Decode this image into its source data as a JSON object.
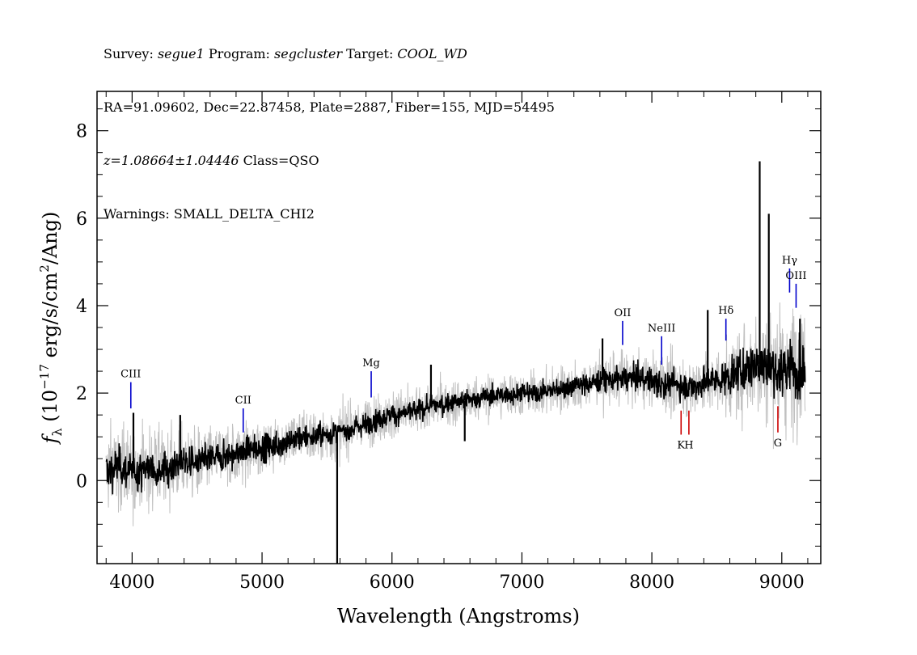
{
  "header": {
    "line1": {
      "k1": "Survey: ",
      "v1": "segue1",
      "k2": " Program: ",
      "v2": "segcluster",
      "k3": " Target: ",
      "v3": "COOL_WD"
    },
    "line2": "RA=91.09602, Dec=22.87458, Plate=2887, Fiber=155, MJD=54495",
    "line3": {
      "z": "z=1.08664±1.04446",
      "cls": " Class=QSO"
    },
    "line4": "Warnings: SMALL_DELTA_CHI2"
  },
  "chart_data": {
    "type": "line",
    "title": "",
    "xlabel": "Wavelength (Angstroms)",
    "ylabel_parts": {
      "f": "f",
      "sub": "λ",
      "pre": " (10",
      "exp1": "−17",
      "mid": " erg/s/cm",
      "exp2": "2",
      "post": "/Ang)"
    },
    "xlim": [
      3730,
      9300
    ],
    "ylim": [
      -1.9,
      8.9
    ],
    "xticks": [
      4000,
      5000,
      6000,
      7000,
      8000,
      9000
    ],
    "yticks": [
      0,
      2,
      4,
      6,
      8
    ],
    "xtick_labels": [
      "4000",
      "5000",
      "6000",
      "7000",
      "8000",
      "9000"
    ],
    "ytick_labels": [
      "0",
      "2",
      "4",
      "6",
      "8"
    ],
    "grid": false,
    "colors": {
      "flux": "#000000",
      "error": "#c0c0c0",
      "emission": "#0000cc",
      "absorption": "#cc0000"
    },
    "series": [
      {
        "role": "flux",
        "x": [
          3800,
          3900,
          4000,
          4100,
          4200,
          4300,
          4400,
          4500,
          4600,
          4700,
          4800,
          4900,
          5000,
          5100,
          5200,
          5300,
          5400,
          5500,
          5600,
          5700,
          5800,
          5900,
          6000,
          6100,
          6200,
          6300,
          6400,
          6500,
          6600,
          6700,
          6800,
          6900,
          7000,
          7100,
          7200,
          7300,
          7400,
          7500,
          7600,
          7700,
          7800,
          7900,
          8000,
          8100,
          8200,
          8300,
          8400,
          8500,
          8600,
          8700,
          8800,
          8900,
          9000,
          9100,
          9180
        ],
        "y": [
          0.2,
          0.35,
          0.15,
          0.3,
          0.25,
          0.3,
          0.45,
          0.4,
          0.5,
          0.55,
          0.6,
          0.7,
          0.75,
          0.8,
          0.9,
          1.0,
          1.0,
          1.05,
          1.1,
          1.2,
          1.3,
          1.4,
          1.5,
          1.55,
          1.6,
          1.7,
          1.75,
          1.8,
          1.85,
          1.9,
          1.95,
          1.95,
          2.0,
          2.0,
          2.05,
          2.1,
          2.15,
          2.2,
          2.3,
          2.3,
          2.35,
          2.35,
          2.3,
          2.2,
          2.2,
          2.1,
          2.25,
          2.3,
          2.35,
          2.5,
          2.7,
          2.6,
          2.5,
          2.6,
          2.55
        ]
      },
      {
        "role": "error",
        "x": [
          3800,
          4000,
          4500,
          5000,
          5500,
          6000,
          6500,
          7000,
          7500,
          8000,
          8500,
          8800,
          9000,
          9180
        ],
        "y": [
          0.6,
          0.55,
          0.45,
          0.4,
          0.35,
          0.32,
          0.3,
          0.3,
          0.32,
          0.38,
          0.45,
          0.7,
          0.8,
          0.9
        ]
      }
    ],
    "spikes": [
      {
        "x": 4010,
        "y": 1.55
      },
      {
        "x": 4370,
        "y": 1.5
      },
      {
        "x": 5578,
        "y": -1.9
      },
      {
        "x": 6300,
        "y": 2.65
      },
      {
        "x": 6560,
        "y": 0.9
      },
      {
        "x": 7620,
        "y": 3.25
      },
      {
        "x": 8040,
        "y": 1.9
      },
      {
        "x": 8430,
        "y": 3.9
      },
      {
        "x": 8830,
        "y": 7.3
      },
      {
        "x": 8900,
        "y": 6.1
      },
      {
        "x": 9140,
        "y": 3.7
      }
    ],
    "lines": [
      {
        "label": "CIII",
        "x": 3990,
        "y1": 1.65,
        "y2": 2.25,
        "kind": "emission",
        "label_pos": "above"
      },
      {
        "label": "CII",
        "x": 4855,
        "y1": 1.1,
        "y2": 1.65,
        "kind": "emission",
        "label_pos": "above"
      },
      {
        "label": "Mg",
        "x": 5840,
        "y1": 1.9,
        "y2": 2.5,
        "kind": "emission",
        "label_pos": "above"
      },
      {
        "label": "OII",
        "x": 7775,
        "y1": 3.1,
        "y2": 3.65,
        "kind": "emission",
        "label_pos": "above"
      },
      {
        "label": "NeIII",
        "x": 8075,
        "y1": 2.65,
        "y2": 3.3,
        "kind": "emission",
        "label_pos": "above"
      },
      {
        "label": "Hδ",
        "x": 8570,
        "y1": 3.2,
        "y2": 3.7,
        "kind": "emission",
        "label_pos": "above"
      },
      {
        "label": "Hγ",
        "x": 9060,
        "y1": 4.3,
        "y2": 4.85,
        "kind": "emission",
        "label_pos": "above"
      },
      {
        "label": "OIII",
        "x": 9110,
        "y1": 3.95,
        "y2": 4.5,
        "kind": "emission",
        "label_pos": "above"
      },
      {
        "label": "K",
        "x": 8225,
        "y1": 1.05,
        "y2": 1.6,
        "kind": "absorption",
        "label_pos": "below"
      },
      {
        "label": "H",
        "x": 8285,
        "y1": 1.05,
        "y2": 1.6,
        "kind": "absorption",
        "label_pos": "below"
      },
      {
        "label": "G",
        "x": 8970,
        "y1": 1.1,
        "y2": 1.7,
        "kind": "absorption",
        "label_pos": "below"
      }
    ]
  }
}
